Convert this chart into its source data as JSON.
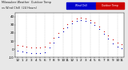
{
  "title_left": "Milwaukee Weather  Outdoor Temp",
  "outdoor_temp": {
    "x": [
      0,
      1,
      2,
      3,
      4,
      5,
      6,
      7,
      8,
      9,
      10,
      11,
      12,
      13,
      14,
      15,
      16,
      17,
      18,
      19,
      20,
      21,
      22,
      23
    ],
    "y": [
      5,
      4,
      3,
      2,
      2,
      2,
      3,
      8,
      14,
      20,
      26,
      31,
      35,
      38,
      39,
      38,
      36,
      33,
      28,
      22,
      17,
      12,
      8,
      6
    ]
  },
  "wind_chill": {
    "x": [
      0,
      1,
      2,
      3,
      4,
      5,
      6,
      7,
      8,
      9,
      10,
      11,
      12,
      13,
      14,
      15,
      16,
      17,
      18,
      19,
      20,
      21,
      22,
      23
    ],
    "y": [
      -2,
      -3,
      -4,
      -5,
      -5,
      -5,
      -4,
      2,
      8,
      15,
      22,
      27,
      32,
      35,
      36,
      35,
      33,
      30,
      25,
      19,
      13,
      7,
      3,
      1
    ]
  },
  "outdoor_color": "#cc0000",
  "wind_chill_color": "#0000bb",
  "background_color": "#e8e8e8",
  "plot_bg_color": "#ffffff",
  "ylim": [
    -10,
    45
  ],
  "xlim": [
    -0.5,
    23.5
  ],
  "grid_color": "#bbbbbb",
  "tick_label_fontsize": 3.0,
  "legend_outdoor_color": "#cc0000",
  "legend_windchill_color": "#0000cc",
  "ytick_positions": [
    -10,
    0,
    10,
    20,
    30,
    40
  ],
  "ytick_labels": [
    "-10",
    "0",
    "10",
    "20",
    "30",
    "40"
  ],
  "xtick_positions": [
    0,
    1,
    2,
    3,
    4,
    5,
    6,
    7,
    8,
    9,
    10,
    11,
    12,
    13,
    14,
    15,
    16,
    17,
    18,
    19,
    20,
    21,
    22,
    23
  ],
  "xtick_labels": [
    "12",
    "1",
    "2",
    "3",
    "4",
    "5",
    "6",
    "7",
    "8",
    "9",
    "10",
    "11",
    "12",
    "1",
    "2",
    "3",
    "4",
    "5",
    "6",
    "7",
    "8",
    "9",
    "10",
    "11"
  ]
}
